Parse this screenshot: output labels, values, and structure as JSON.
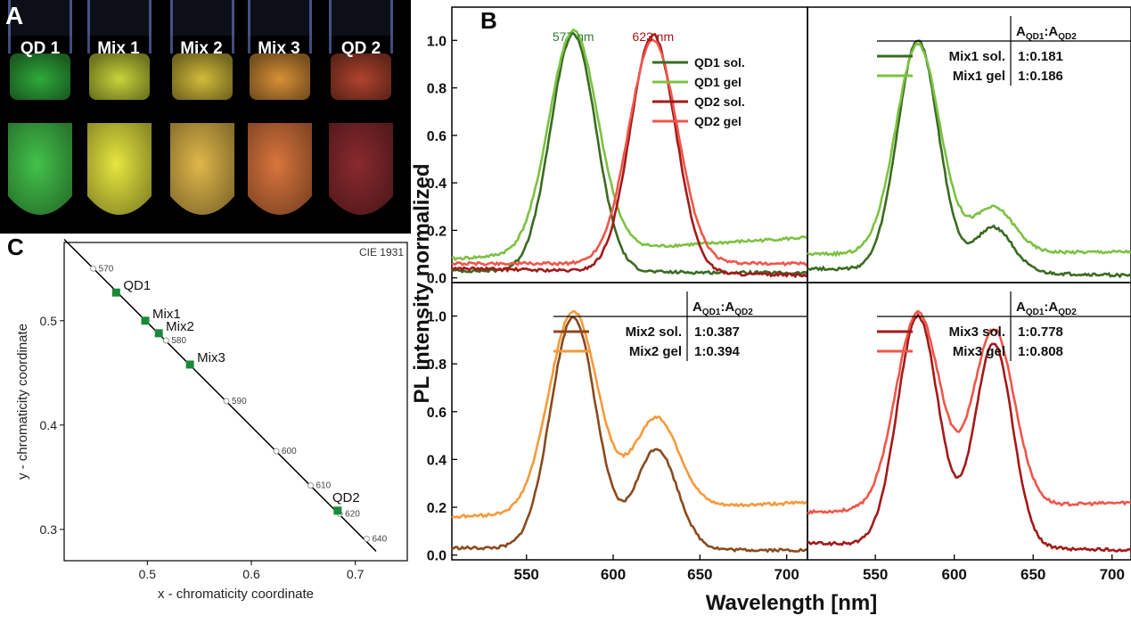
{
  "panel_a": {
    "letter": "A",
    "labels": [
      "QD 1",
      "Mix 1",
      "Mix 2",
      "Mix 3",
      "QD 2"
    ],
    "tube_colors_solution": [
      "#2faa3c",
      "#c9d43a",
      "#d3bc3a",
      "#d89136",
      "#b0442e"
    ],
    "tube_colors_gel": [
      "#43c24a",
      "#e6e640",
      "#e0b74a",
      "#d9753c",
      "#8a2a2e"
    ]
  },
  "chart_data": [
    {
      "type": "scatter",
      "panel": "C",
      "corner_label": "CIE 1931",
      "xlabel": "x - chromaticity coordinate",
      "ylabel": "y - chromaticity coordinate",
      "xlim": [
        0.42,
        0.75
      ],
      "ylim": [
        0.27,
        0.575
      ],
      "xticks": [
        "0.5",
        "0.6",
        "0.7"
      ],
      "yticks": [
        "0.3",
        "0.4",
        "0.5"
      ],
      "locus": {
        "x": [
          0.42,
          0.72
        ],
        "y": [
          0.578,
          0.279
        ]
      },
      "wavelength_marks": [
        {
          "label": "570",
          "x": 0.448,
          "y": 0.55
        },
        {
          "label": "580",
          "x": 0.518,
          "y": 0.481
        },
        {
          "label": "590",
          "x": 0.576,
          "y": 0.423
        },
        {
          "label": "600",
          "x": 0.624,
          "y": 0.375
        },
        {
          "label": "610",
          "x": 0.657,
          "y": 0.342
        },
        {
          "label": "620",
          "x": 0.685,
          "y": 0.315
        },
        {
          "label": "640",
          "x": 0.711,
          "y": 0.291
        }
      ],
      "points": [
        {
          "label": "QD1",
          "x": 0.47,
          "y": 0.527
        },
        {
          "label": "Mix1",
          "x": 0.498,
          "y": 0.5
        },
        {
          "label": "Mix2",
          "x": 0.511,
          "y": 0.488
        },
        {
          "label": "Mix3",
          "x": 0.541,
          "y": 0.458
        },
        {
          "label": "QD2",
          "x": 0.683,
          "y": 0.318
        }
      ],
      "point_color": "#1a8a3a"
    },
    {
      "type": "line",
      "panel": "B",
      "xlabel": "Wavelength [nm]",
      "ylabel": "PL intensity normalized",
      "xlim": [
        507,
        712
      ],
      "ylim": [
        -0.02,
        1.14
      ],
      "xticks": [
        "550",
        "600",
        "650",
        "700"
      ],
      "yticks": [
        "0.0",
        "0.2",
        "0.4",
        "0.6",
        "0.8",
        "1.0"
      ],
      "annotations": [
        {
          "text": "577 nm",
          "color": "#2e7d32",
          "x": 577
        },
        {
          "text": "623 nm",
          "color": "#a31515",
          "x": 623
        }
      ],
      "subplots": [
        {
          "position": "top-left",
          "legend": {
            "location": "top-right"
          },
          "series": [
            {
              "name": "QD1 sol.",
              "color": "#3a6b22",
              "peaks": [
                {
                  "c": 577,
                  "w": 13,
                  "a": 1.0
                }
              ],
              "base": 0.03,
              "tail": 0.02
            },
            {
              "name": "QD1 gel",
              "color": "#7cc242",
              "peaks": [
                {
                  "c": 577,
                  "w": 14,
                  "a": 0.93
                }
              ],
              "base": 0.08,
              "tail": 0.17
            },
            {
              "name": "QD2 sol.",
              "color": "#a31a1a",
              "peaks": [
                {
                  "c": 623,
                  "w": 13,
                  "a": 1.0
                }
              ],
              "base": 0.04,
              "tail": 0.01
            },
            {
              "name": "QD2 gel",
              "color": "#f0564a",
              "peaks": [
                {
                  "c": 623,
                  "w": 14,
                  "a": 0.94
                }
              ],
              "base": 0.06,
              "tail": 0.06
            }
          ]
        },
        {
          "position": "top-right",
          "table": {
            "header_top": "A",
            "header": "AQD1:AQD2",
            "rows": [
              {
                "name": "Mix1 sol.",
                "ratio": "1:0.181"
              },
              {
                "name": "Mix1 gel",
                "ratio": "1:0.186"
              }
            ]
          },
          "series": [
            {
              "name": "Mix1 sol.",
              "color": "#3a6b22",
              "peaks": [
                {
                  "c": 577,
                  "w": 13,
                  "a": 0.97
                },
                {
                  "c": 625,
                  "w": 12,
                  "a": 0.19
                }
              ],
              "base": 0.04,
              "tail": 0.01
            },
            {
              "name": "Mix1 gel",
              "color": "#7cc242",
              "peaks": [
                {
                  "c": 577,
                  "w": 14,
                  "a": 0.88
                },
                {
                  "c": 625,
                  "w": 13,
                  "a": 0.19
                }
              ],
              "base": 0.1,
              "tail": 0.11
            }
          ]
        },
        {
          "position": "bottom-left",
          "table": {
            "header": "AQD1:AQD2",
            "rows": [
              {
                "name": "Mix2 sol.",
                "ratio": "1:0.387"
              },
              {
                "name": "Mix2 gel",
                "ratio": "1:0.394"
              }
            ]
          },
          "series": [
            {
              "name": "Mix2 sol.",
              "color": "#8a4a1c",
              "peaks": [
                {
                  "c": 577,
                  "w": 13,
                  "a": 0.97
                },
                {
                  "c": 625,
                  "w": 12,
                  "a": 0.42
                }
              ],
              "base": 0.03,
              "tail": 0.02
            },
            {
              "name": "Mix2 gel",
              "color": "#f59a3a",
              "peaks": [
                {
                  "c": 577,
                  "w": 14,
                  "a": 0.84
                },
                {
                  "c": 625,
                  "w": 13,
                  "a": 0.38
                }
              ],
              "base": 0.16,
              "tail": 0.22
            }
          ]
        },
        {
          "position": "bottom-right",
          "table": {
            "header": "AQD1:AQD2",
            "rows": [
              {
                "name": "Mix3 sol.",
                "ratio": "1:0.778"
              },
              {
                "name": "Mix3 gel",
                "ratio": "1:0.808"
              }
            ]
          },
          "series": [
            {
              "name": "Mix3 sol.",
              "color": "#a31a1a",
              "peaks": [
                {
                  "c": 577,
                  "w": 13,
                  "a": 0.96
                },
                {
                  "c": 625,
                  "w": 12,
                  "a": 0.85
                }
              ],
              "base": 0.05,
              "tail": 0.02
            },
            {
              "name": "Mix3 gel",
              "color": "#f0564a",
              "peaks": [
                {
                  "c": 577,
                  "w": 14,
                  "a": 0.82
                },
                {
                  "c": 625,
                  "w": 13,
                  "a": 0.74
                }
              ],
              "base": 0.18,
              "tail": 0.22
            }
          ]
        }
      ]
    }
  ],
  "panel_b_letter": "B",
  "panel_c_letter": "C"
}
